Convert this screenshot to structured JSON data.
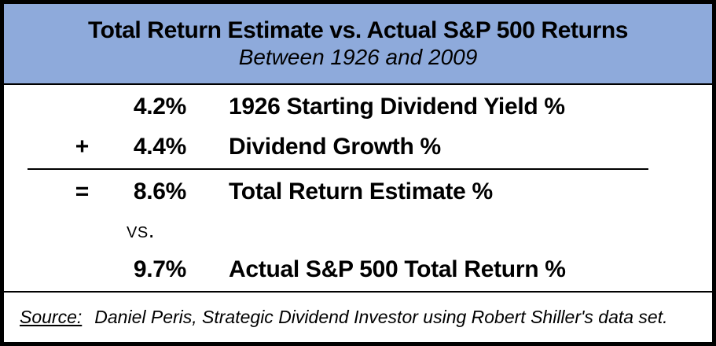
{
  "header": {
    "title": "Total Return Estimate vs. Actual S&P 500 Returns",
    "subtitle": "Between 1926 and 2009"
  },
  "calculation": {
    "rows": [
      {
        "operator": "",
        "value": "4.2%",
        "label": "1926 Starting Dividend Yield %"
      },
      {
        "operator": "+",
        "value": "4.4%",
        "label": "Dividend Growth %"
      },
      {
        "operator": "=",
        "value": "8.6%",
        "label": "Total Return Estimate %"
      },
      {
        "operator": "",
        "value": "9.7%",
        "label": "Actual S&P 500 Total Return %"
      }
    ],
    "versus_label": "vs."
  },
  "footer": {
    "source_label": "Source:",
    "source_text": "Daniel Peris, Strategic Dividend Investor using Robert Shiller's data set."
  },
  "chart_data": {
    "type": "table",
    "title": "Total Return Estimate vs. Actual S&P 500 Returns",
    "subtitle": "Between 1926 and 2009",
    "categories": [
      "1926 Starting Dividend Yield %",
      "Dividend Growth %",
      "Total Return Estimate %",
      "Actual S&P 500 Total Return %"
    ],
    "values": [
      4.2,
      4.4,
      8.6,
      9.7
    ]
  },
  "colors": {
    "header_bg": "#8EAADB",
    "border": "#000000",
    "text": "#000000",
    "body_bg": "#FFFFFF"
  }
}
